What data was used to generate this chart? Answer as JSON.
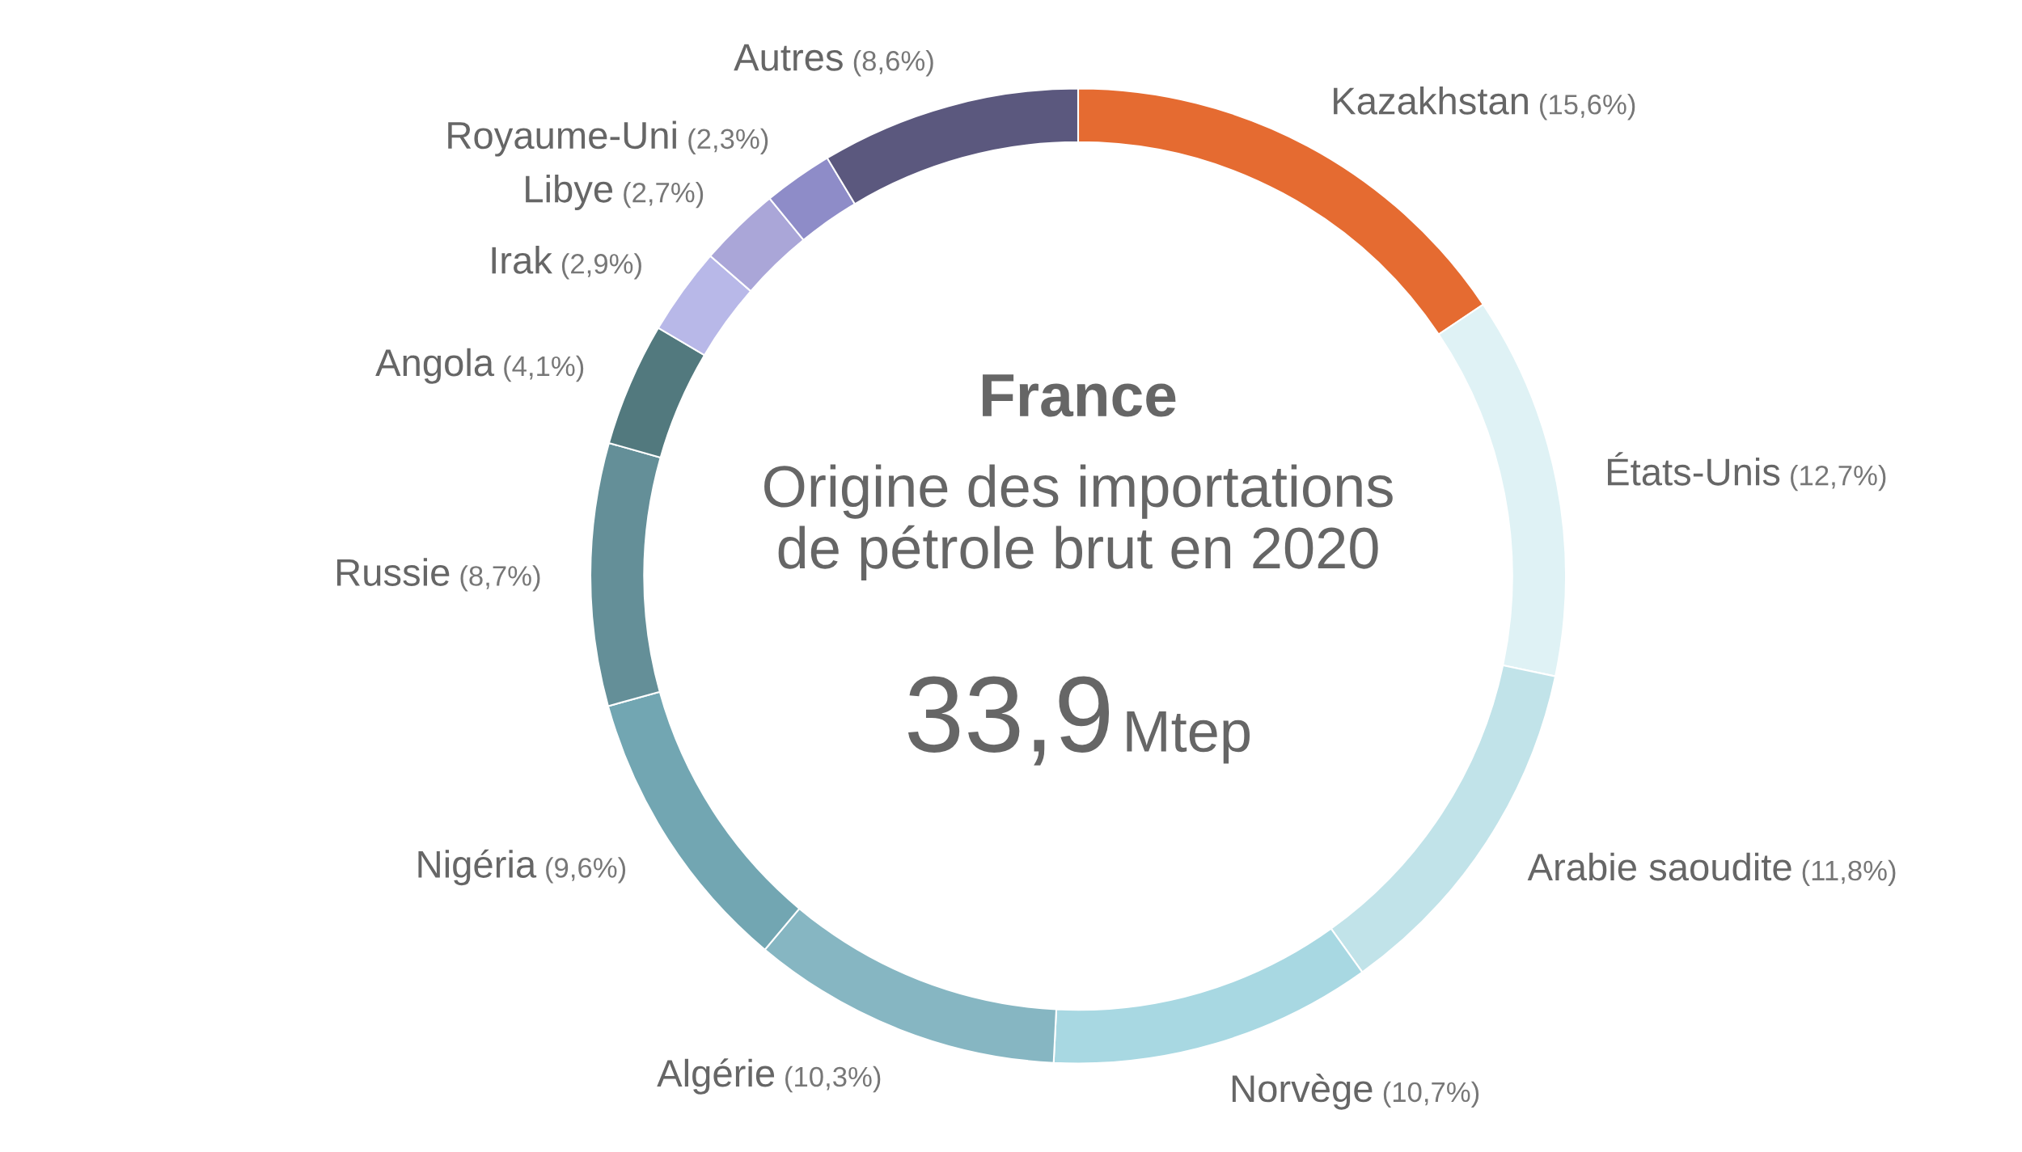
{
  "chart_data": {
    "type": "donut",
    "title": "France",
    "subtitle": "Origine des importations\nde pétrole brut en 2020",
    "categories": [
      "Kazakhstan",
      "États-Unis",
      "Arabie saoudite",
      "Norvège",
      "Algérie",
      "Nigéria",
      "Russie",
      "Angola",
      "Irak",
      "Libye",
      "Royaume-Uni",
      "Autres"
    ],
    "values": [
      15.6,
      12.7,
      11.8,
      10.7,
      10.3,
      9.6,
      8.7,
      4.1,
      2.9,
      2.7,
      2.3,
      8.6
    ],
    "value_labels": [
      "(15,6%)",
      "(12,7%)",
      "(11,8%)",
      "(10,7%)",
      "(10,3%)",
      "(9,6%)",
      "(8,7%)",
      "(4,1%)",
      "(2,9%)",
      "(2,7%)",
      "(2,3%)",
      "(8,6%)"
    ],
    "colors": [
      "#e56b31",
      "#dff2f5",
      "#c1e3e9",
      "#a8d8e2",
      "#86b6c2",
      "#72a6b2",
      "#648f98",
      "#52797e",
      "#b8b8e8",
      "#aaa6d8",
      "#8e8cc8",
      "#5b587e"
    ],
    "annotations": [
      "33,9",
      "Mtep"
    ]
  }
}
